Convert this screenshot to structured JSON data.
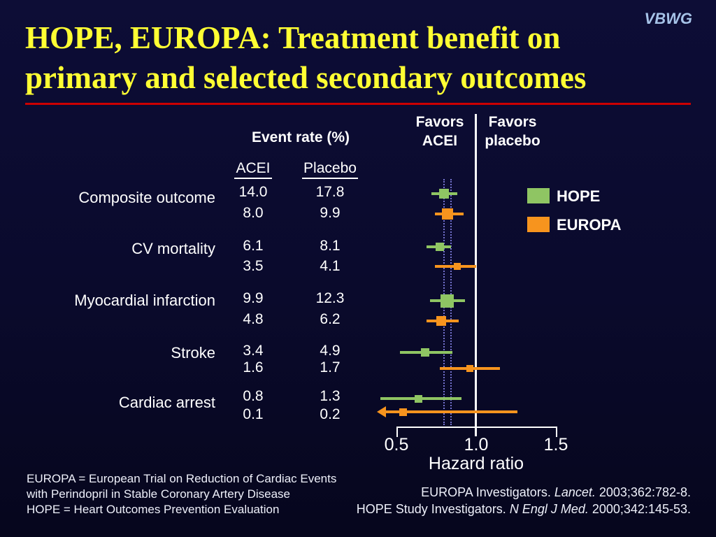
{
  "slide": {
    "badge": "VBWG",
    "title_lines": [
      "HOPE, EUROPA: Treatment benefit on",
      "primary and selected secondary outcomes"
    ],
    "colors": {
      "background": "#0a0a2c",
      "title": "#ffff33",
      "rule": "#cc0000",
      "badge": "#a6c3e8",
      "text": "#ffffff",
      "hope": "#8fc563",
      "europa": "#f7941e",
      "dotted_guide": "#7472ce",
      "axis": "#ffffff"
    }
  },
  "table": {
    "header": "Event rate (%)",
    "columns": [
      "ACEI",
      "Placebo"
    ]
  },
  "chart_data": {
    "type": "forest",
    "title": "HOPE, EUROPA: Treatment benefit on primary and selected secondary outcomes",
    "xlabel": "Hazard ratio",
    "xlim": [
      0.5,
      1.5
    ],
    "x_tick_values": [
      0.5,
      1.0,
      1.5
    ],
    "x_tick_labels": [
      "0.5",
      "1.0",
      "1.5"
    ],
    "reference_line": 1.0,
    "dotted_guides": [
      0.8,
      0.84
    ],
    "favors_left": [
      "Favors",
      "ACEI"
    ],
    "favors_right": [
      "Favors",
      "placebo"
    ],
    "legend": [
      {
        "label": "HOPE",
        "color_key": "hope"
      },
      {
        "label": "EUROPA",
        "color_key": "europa"
      }
    ],
    "outcomes": [
      {
        "label": "Composite outcome",
        "series": [
          {
            "trial": "HOPE",
            "event_rate_acei": "14.0",
            "event_rate_placebo": "17.8",
            "hr": 0.8,
            "ci_low": 0.72,
            "ci_high": 0.88,
            "marker_size": 14
          },
          {
            "trial": "EUROPA",
            "event_rate_acei": "8.0",
            "event_rate_placebo": "9.9",
            "hr": 0.82,
            "ci_low": 0.74,
            "ci_high": 0.92,
            "marker_size": 16
          }
        ]
      },
      {
        "label": "CV mortality",
        "series": [
          {
            "trial": "HOPE",
            "event_rate_acei": "6.1",
            "event_rate_placebo": "8.1",
            "hr": 0.77,
            "ci_low": 0.69,
            "ci_high": 0.84,
            "marker_size": 12
          },
          {
            "trial": "EUROPA",
            "event_rate_acei": "3.5",
            "event_rate_placebo": "4.1",
            "hr": 0.88,
            "ci_low": 0.74,
            "ci_high": 1.0,
            "marker_size": 10
          }
        ]
      },
      {
        "label": "Myocardial infarction",
        "series": [
          {
            "trial": "HOPE",
            "event_rate_acei": "9.9",
            "event_rate_placebo": "12.3",
            "hr": 0.82,
            "ci_low": 0.71,
            "ci_high": 0.93,
            "marker_size": 19
          },
          {
            "trial": "EUROPA",
            "event_rate_acei": "4.8",
            "event_rate_placebo": "6.2",
            "hr": 0.78,
            "ci_low": 0.69,
            "ci_high": 0.89,
            "marker_size": 14
          }
        ]
      },
      {
        "label": "Stroke",
        "series": [
          {
            "trial": "HOPE",
            "event_rate_acei": "3.4",
            "event_rate_placebo": "4.9",
            "hr": 0.68,
            "ci_low": 0.52,
            "ci_high": 0.85,
            "marker_size": 12
          },
          {
            "trial": "EUROPA",
            "event_rate_acei": "1.6",
            "event_rate_placebo": "1.7",
            "hr": 0.96,
            "ci_low": 0.77,
            "ci_high": 1.15,
            "marker_size": 10
          }
        ]
      },
      {
        "label": "Cardiac arrest",
        "series": [
          {
            "trial": "HOPE",
            "event_rate_acei": "0.8",
            "event_rate_placebo": "1.3",
            "hr": 0.64,
            "ci_low": 0.4,
            "ci_high": 0.91,
            "marker_size": 11
          },
          {
            "trial": "EUROPA",
            "event_rate_acei": "0.1",
            "event_rate_placebo": "0.2",
            "hr": 0.54,
            "ci_low": 0.43,
            "ci_high": 1.26,
            "marker_size": 11,
            "arrow_left": true
          }
        ]
      }
    ]
  },
  "footnotes": [
    "EUROPA = European Trial on Reduction of Cardiac Events",
    "with Perindopril in Stable Coronary Artery Disease",
    "HOPE = Heart Outcomes Prevention Evaluation"
  ],
  "citations": [
    [
      {
        "text": "EUROPA Investigators. "
      },
      {
        "text": "Lancet.",
        "italic": true
      },
      {
        "text": " 2003;362:782-8."
      }
    ],
    [
      {
        "text": "HOPE Study Investigators. "
      },
      {
        "text": "N Engl J Med.",
        "italic": true
      },
      {
        "text": " 2000;342:145-53."
      }
    ]
  ]
}
